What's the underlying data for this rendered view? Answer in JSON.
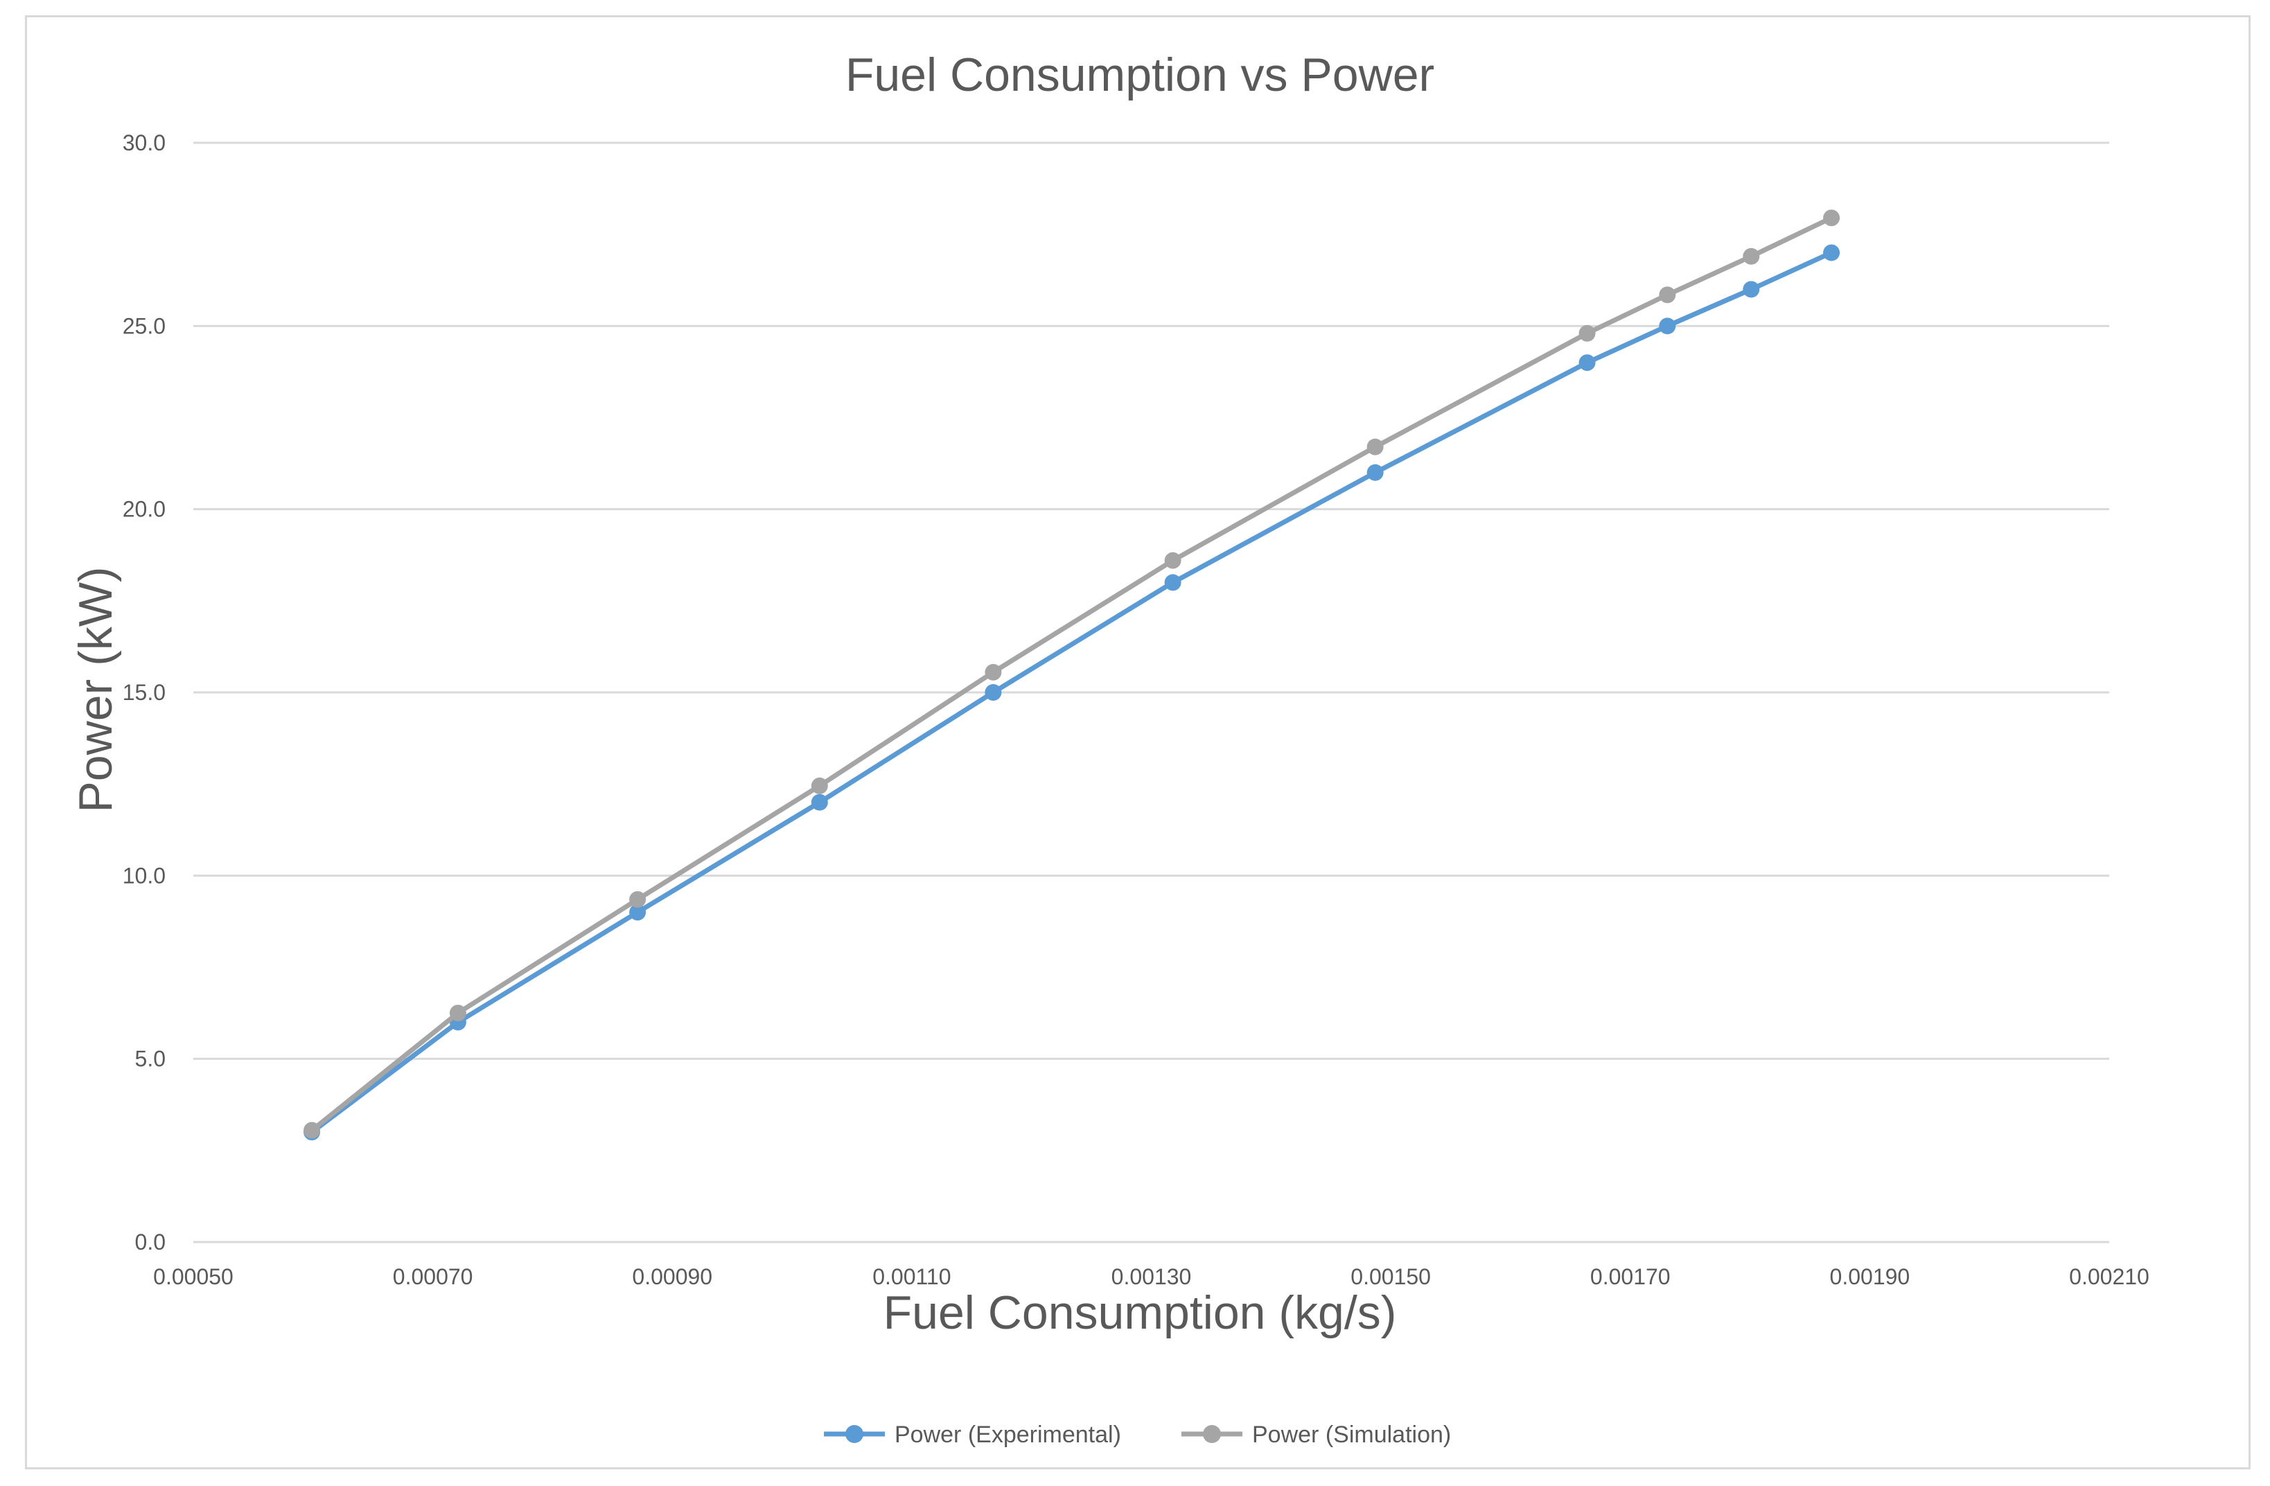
{
  "chart_data": {
    "type": "line",
    "title": "Fuel Consumption vs Power",
    "xlabel": "Fuel Consumption (kg/s)",
    "ylabel": "Power (kW)",
    "xlim": [
      0.0005,
      0.0021
    ],
    "ylim": [
      0,
      30
    ],
    "x_ticks": [
      "0.00050",
      "0.00070",
      "0.00090",
      "0.00110",
      "0.00130",
      "0.00150",
      "0.00170",
      "0.00190",
      "0.00210"
    ],
    "y_ticks": [
      "0.0",
      "5.0",
      "10.0",
      "15.0",
      "20.0",
      "25.0",
      "30.0"
    ],
    "grid": "horizontal",
    "legend_position": "bottom",
    "series": [
      {
        "name": "Power (Experimental)",
        "color": "#5b9bd5",
        "x": [
          0.000599,
          0.000721,
          0.000871,
          0.001023,
          0.001168,
          0.001318,
          0.001487,
          0.001664,
          0.001731,
          0.001801,
          0.001868
        ],
        "y": [
          3.0,
          6.0,
          9.0,
          12.0,
          15.0,
          18.0,
          21.0,
          24.0,
          25.0,
          26.0,
          27.0
        ]
      },
      {
        "name": "Power (Simulation)",
        "color": "#a5a5a5",
        "x": [
          0.000599,
          0.000721,
          0.000871,
          0.001023,
          0.001168,
          0.001318,
          0.001487,
          0.001664,
          0.001731,
          0.001801,
          0.001868
        ],
        "y": [
          3.05,
          6.25,
          9.35,
          12.45,
          15.55,
          18.6,
          21.7,
          24.8,
          25.85,
          26.9,
          27.95
        ]
      }
    ]
  }
}
